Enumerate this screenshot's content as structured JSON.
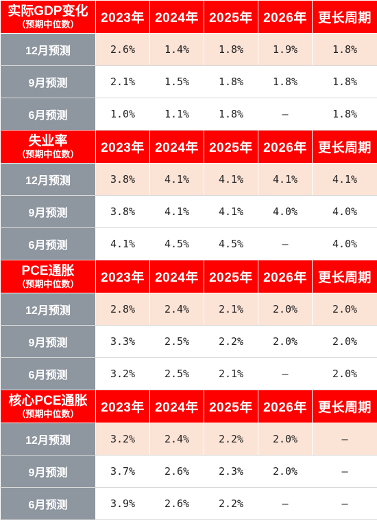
{
  "columns": [
    "2023年",
    "2024年",
    "2025年",
    "2026年",
    "更长周期"
  ],
  "sections": [
    {
      "title": "实际GDP变化",
      "subtitle": "（预期中位数）",
      "rows": [
        {
          "label": "12月预测",
          "values": [
            "2.6%",
            "1.4%",
            "1.8%",
            "1.9%",
            "1.8%"
          ]
        },
        {
          "label": "9月预测",
          "values": [
            "2.1%",
            "1.5%",
            "1.8%",
            "1.8%",
            "1.8%"
          ]
        },
        {
          "label": "6月预测",
          "values": [
            "1.0%",
            "1.1%",
            "1.8%",
            "—",
            "1.8%"
          ]
        }
      ]
    },
    {
      "title": "失业率",
      "subtitle": "（预期中位数）",
      "rows": [
        {
          "label": "12月预测",
          "values": [
            "3.8%",
            "4.1%",
            "4.1%",
            "4.1%",
            "4.1%"
          ]
        },
        {
          "label": "9月预测",
          "values": [
            "3.8%",
            "4.1%",
            "4.1%",
            "4.0%",
            "4.0%"
          ]
        },
        {
          "label": "6月预测",
          "values": [
            "4.1%",
            "4.5%",
            "4.5%",
            "—",
            "4.0%"
          ]
        }
      ]
    },
    {
      "title": "PCE通胀",
      "subtitle": "（预期中位数）",
      "rows": [
        {
          "label": "12月预测",
          "values": [
            "2.8%",
            "2.4%",
            "2.1%",
            "2.0%",
            "2.0%"
          ]
        },
        {
          "label": "9月预测",
          "values": [
            "3.3%",
            "2.5%",
            "2.2%",
            "2.0%",
            "2.0%"
          ]
        },
        {
          "label": "6月预测",
          "values": [
            "3.2%",
            "2.5%",
            "2.1%",
            "—",
            "2.0%"
          ]
        }
      ]
    },
    {
      "title": "核心PCE通胀",
      "subtitle": "（预期中位数）",
      "rows": [
        {
          "label": "12月预测",
          "values": [
            "3.2%",
            "2.4%",
            "2.2%",
            "2.0%",
            "—"
          ]
        },
        {
          "label": "9月预测",
          "values": [
            "3.7%",
            "2.6%",
            "2.3%",
            "2.0%",
            "—"
          ]
        },
        {
          "label": "6月预测",
          "values": [
            "3.9%",
            "2.6%",
            "2.2%",
            "—",
            "—"
          ]
        }
      ]
    }
  ],
  "colors": {
    "header_bg": "#ff0000",
    "header_text": "#ffffff",
    "row_label_bg": "#8e969f",
    "latest_row_bg": "#fbe3d6",
    "cell_bg": "#ffffff"
  }
}
